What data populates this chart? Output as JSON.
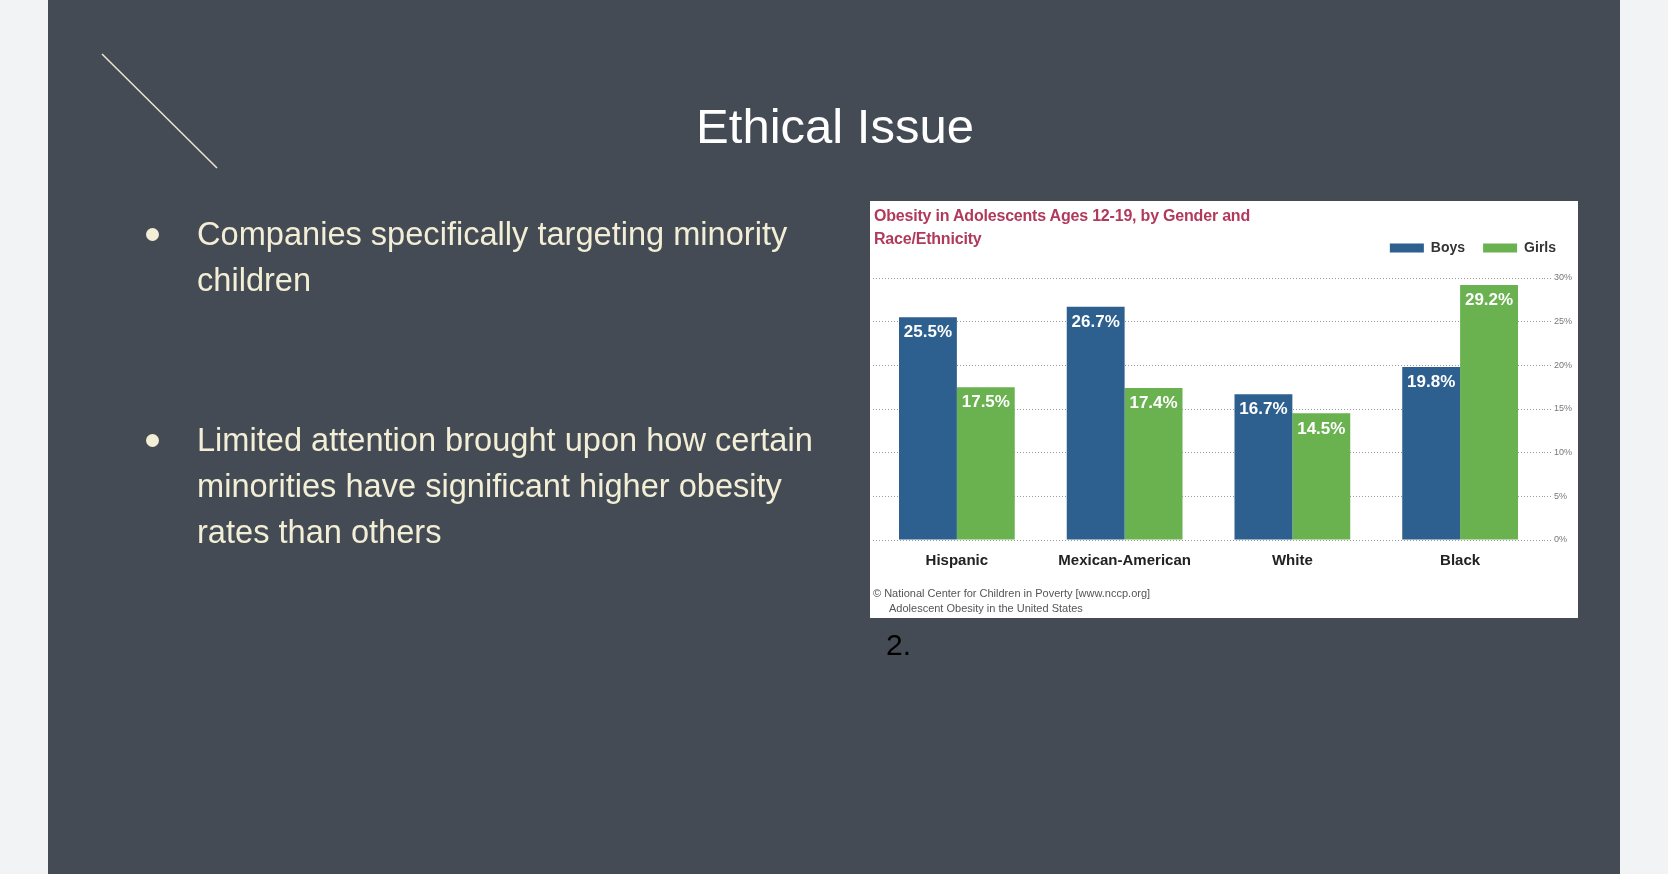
{
  "chart_data": {
    "type": "bar",
    "title": "Obesity in Adolescents Ages 12-19, by Gender and Race/Ethnicity",
    "categories": [
      "Hispanic",
      "Mexican-American",
      "White",
      "Black"
    ],
    "series": [
      {
        "name": "Boys",
        "color": "#2d5f8f",
        "values": [
          25.5,
          26.7,
          16.7,
          19.8
        ],
        "value_labels": [
          "25.5%",
          "26.7%",
          "16.7%",
          "19.8%"
        ]
      },
      {
        "name": "Girls",
        "color": "#6ab150",
        "values": [
          17.5,
          17.4,
          14.5,
          29.2
        ],
        "value_labels": [
          "17.5%",
          "17.4%",
          "14.5%",
          "29.2%"
        ]
      }
    ],
    "ylim": [
      0,
      30
    ],
    "yticks": [
      {
        "value": 0,
        "label": "0%"
      },
      {
        "value": 5,
        "label": "5%"
      },
      {
        "value": 10,
        "label": "10%"
      },
      {
        "value": 15,
        "label": "15%"
      },
      {
        "value": 20,
        "label": "20%"
      },
      {
        "value": 25,
        "label": "25%"
      },
      {
        "value": 30,
        "label": "30%"
      }
    ],
    "grid": "y",
    "legend": "top right",
    "annotations": [
      "Ethical Issue",
      "Companies specifically targeting minority children",
      "Limited attention brought upon how certain minorities have significant higher obesity rates than others",
      "2.",
      "© National Center for Children in Poverty [www.nccp.org]",
      "Adolescent Obesity in the United States"
    ]
  }
}
